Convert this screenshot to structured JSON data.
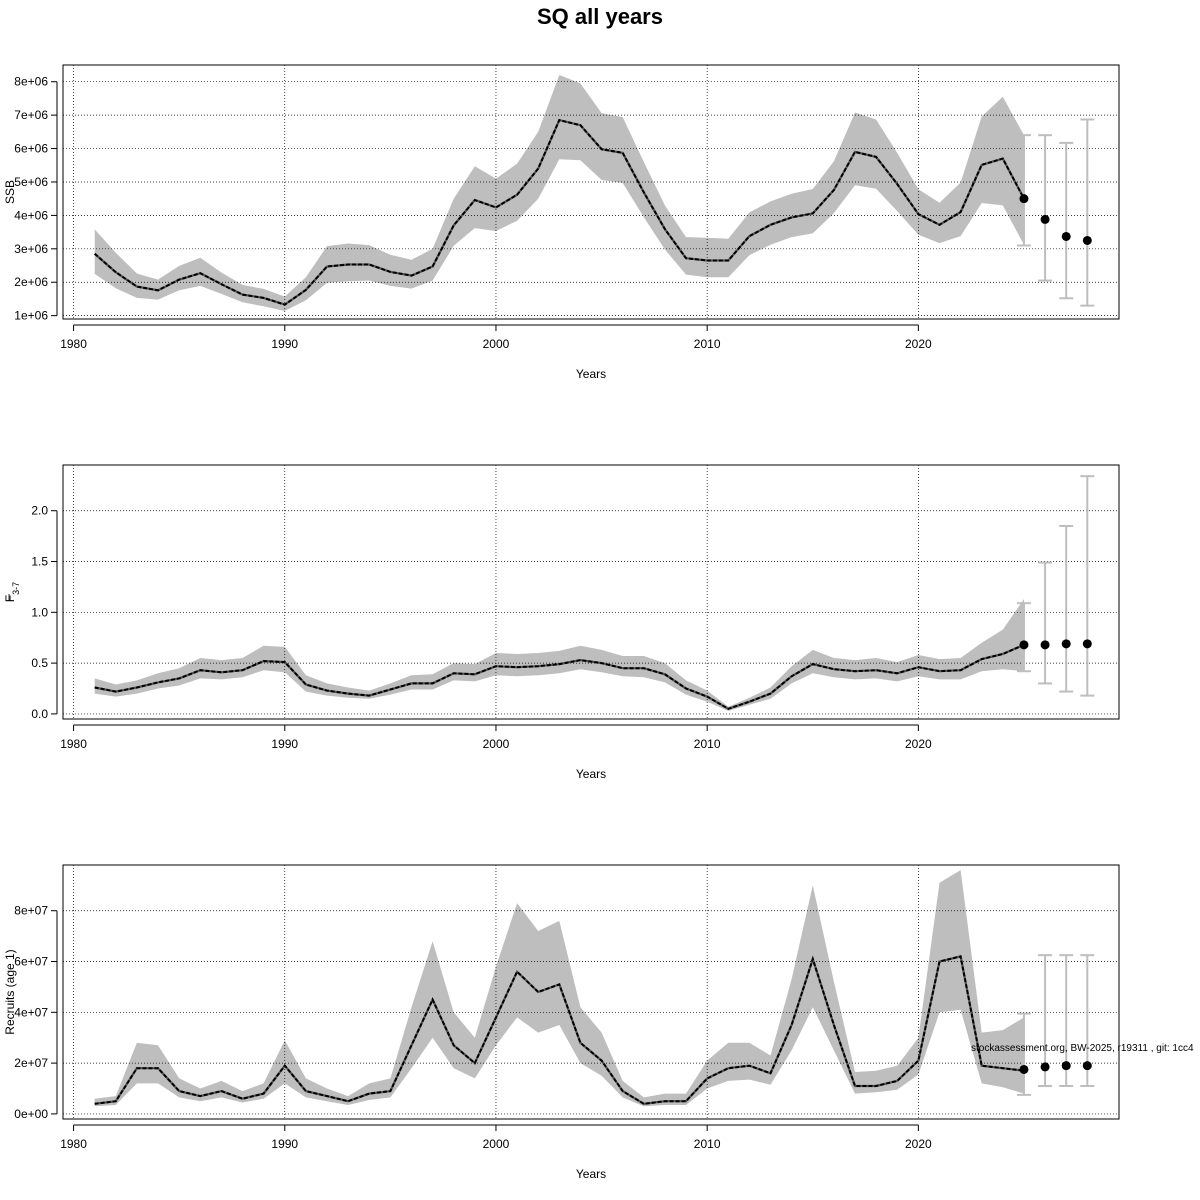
{
  "title": "SQ all years",
  "watermark": "stockassessment.org, BW-2025, r19311 , git: 1cc4",
  "colors": {
    "band": "#bebebe",
    "line": "#000000",
    "grid": "#000000",
    "errorbar": "#bebebe"
  },
  "chart_data": [
    {
      "type": "line",
      "id": "ssb",
      "xlabel": "Years",
      "ylabel": "SSB",
      "ylabel_sub": "",
      "xlim": [
        1979.5,
        2029.5
      ],
      "ylim": [
        900000,
        8500000
      ],
      "xticks": [
        1980,
        1990,
        2000,
        2010,
        2020
      ],
      "xtick_labels": [
        "1980",
        "1990",
        "2000",
        "2010",
        "2020"
      ],
      "yticks": [
        1000000,
        2000000,
        3000000,
        4000000,
        5000000,
        6000000,
        7000000,
        8000000
      ],
      "ytick_labels": [
        "1e+06",
        "2e+06",
        "3e+06",
        "4e+06",
        "5e+06",
        "6e+06",
        "7e+06",
        "8e+06"
      ],
      "grid": true,
      "years": [
        1981,
        1982,
        1983,
        1984,
        1985,
        1986,
        1987,
        1988,
        1989,
        1990,
        1991,
        1992,
        1993,
        1994,
        1995,
        1996,
        1997,
        1998,
        1999,
        2000,
        2001,
        2002,
        2003,
        2004,
        2005,
        2006,
        2007,
        2008,
        2009,
        2010,
        2011,
        2012,
        2013,
        2014,
        2015,
        2016,
        2017,
        2018,
        2019,
        2020,
        2021,
        2022,
        2023,
        2024,
        2025
      ],
      "estimate": [
        2850000,
        2300000,
        1870000,
        1760000,
        2080000,
        2270000,
        1940000,
        1630000,
        1530000,
        1330000,
        1770000,
        2470000,
        2530000,
        2530000,
        2310000,
        2200000,
        2470000,
        3700000,
        4460000,
        4240000,
        4620000,
        5400000,
        6850000,
        6700000,
        5980000,
        5870000,
        4690000,
        3590000,
        2720000,
        2650000,
        2650000,
        3380000,
        3720000,
        3940000,
        4060000,
        4760000,
        5900000,
        5750000,
        4940000,
        4040000,
        3720000,
        4100000,
        5510000,
        5700000,
        4500000
      ],
      "lower": [
        2250000,
        1820000,
        1530000,
        1480000,
        1760000,
        1890000,
        1650000,
        1400000,
        1280000,
        1140000,
        1460000,
        1980000,
        2030000,
        2050000,
        1890000,
        1810000,
        2050000,
        3090000,
        3620000,
        3530000,
        3840000,
        4500000,
        5680000,
        5650000,
        5060000,
        4970000,
        3950000,
        2980000,
        2230000,
        2150000,
        2150000,
        2810000,
        3120000,
        3350000,
        3460000,
        4070000,
        4900000,
        4800000,
        4130000,
        3420000,
        3170000,
        3380000,
        4370000,
        4300000,
        3120000
      ],
      "upper": [
        3580000,
        2880000,
        2260000,
        2080000,
        2490000,
        2730000,
        2290000,
        1920000,
        1800000,
        1570000,
        2150000,
        3080000,
        3160000,
        3110000,
        2820000,
        2670000,
        3000000,
        4500000,
        5470000,
        5100000,
        5550000,
        6500000,
        8200000,
        7950000,
        7060000,
        6940000,
        5600000,
        4300000,
        3350000,
        3330000,
        3300000,
        4090000,
        4420000,
        4650000,
        4790000,
        5620000,
        7080000,
        6870000,
        5870000,
        4780000,
        4380000,
        4980000,
        6960000,
        7550000,
        6400000
      ],
      "forecast": {
        "years": [
          2025,
          2026,
          2027,
          2028
        ],
        "estimate": [
          4500000,
          3880000,
          3370000,
          3250000
        ],
        "lower": [
          3100000,
          2050000,
          1520000,
          1300000
        ],
        "upper": [
          6400000,
          6400000,
          6170000,
          6870000
        ]
      }
    },
    {
      "type": "line",
      "id": "fbar",
      "xlabel": "Years",
      "ylabel": "F",
      "ylabel_sub": "3-7",
      "xlim": [
        1979.5,
        2029.5
      ],
      "ylim": [
        -0.05,
        2.45
      ],
      "xticks": [
        1980,
        1990,
        2000,
        2010,
        2020
      ],
      "xtick_labels": [
        "1980",
        "1990",
        "2000",
        "2010",
        "2020"
      ],
      "yticks": [
        0,
        0.5,
        1,
        1.5,
        2
      ],
      "ytick_labels": [
        "0.0",
        "0.5",
        "1.0",
        "1.5",
        "2.0"
      ],
      "grid": true,
      "years": [
        1981,
        1982,
        1983,
        1984,
        1985,
        1986,
        1987,
        1988,
        1989,
        1990,
        1991,
        1992,
        1993,
        1994,
        1995,
        1996,
        1997,
        1998,
        1999,
        2000,
        2001,
        2002,
        2003,
        2004,
        2005,
        2006,
        2007,
        2008,
        2009,
        2010,
        2011,
        2012,
        2013,
        2014,
        2015,
        2016,
        2017,
        2018,
        2019,
        2020,
        2021,
        2022,
        2023,
        2024,
        2025
      ],
      "estimate": [
        0.26,
        0.22,
        0.26,
        0.31,
        0.35,
        0.43,
        0.41,
        0.43,
        0.52,
        0.51,
        0.29,
        0.23,
        0.2,
        0.18,
        0.24,
        0.3,
        0.3,
        0.4,
        0.39,
        0.47,
        0.46,
        0.47,
        0.49,
        0.53,
        0.5,
        0.45,
        0.45,
        0.39,
        0.25,
        0.17,
        0.05,
        0.12,
        0.2,
        0.37,
        0.49,
        0.44,
        0.42,
        0.43,
        0.4,
        0.46,
        0.42,
        0.43,
        0.54,
        0.59,
        0.68
      ],
      "lower": [
        0.2,
        0.17,
        0.2,
        0.25,
        0.28,
        0.35,
        0.34,
        0.36,
        0.43,
        0.41,
        0.22,
        0.18,
        0.16,
        0.15,
        0.19,
        0.24,
        0.24,
        0.33,
        0.32,
        0.38,
        0.37,
        0.38,
        0.4,
        0.44,
        0.41,
        0.37,
        0.36,
        0.31,
        0.19,
        0.12,
        0.03,
        0.09,
        0.15,
        0.3,
        0.4,
        0.36,
        0.34,
        0.35,
        0.32,
        0.37,
        0.34,
        0.34,
        0.42,
        0.44,
        0.42
      ],
      "upper": [
        0.35,
        0.29,
        0.33,
        0.4,
        0.45,
        0.55,
        0.53,
        0.55,
        0.67,
        0.66,
        0.38,
        0.3,
        0.26,
        0.23,
        0.3,
        0.38,
        0.39,
        0.5,
        0.49,
        0.6,
        0.59,
        0.6,
        0.62,
        0.67,
        0.63,
        0.57,
        0.57,
        0.5,
        0.33,
        0.23,
        0.07,
        0.16,
        0.26,
        0.47,
        0.63,
        0.55,
        0.53,
        0.55,
        0.51,
        0.58,
        0.54,
        0.55,
        0.7,
        0.83,
        1.13
      ],
      "forecast": {
        "years": [
          2025,
          2026,
          2027,
          2028
        ],
        "estimate": [
          0.68,
          0.68,
          0.69,
          0.69
        ],
        "lower": [
          0.42,
          0.3,
          0.22,
          0.18
        ],
        "upper": [
          1.09,
          1.49,
          1.85,
          2.34
        ]
      }
    },
    {
      "type": "line",
      "id": "recruits",
      "xlabel": "Years",
      "ylabel": "Recruits (age 1)",
      "ylabel_sub": "",
      "xlim": [
        1979.5,
        2029.5
      ],
      "ylim": [
        -2000000,
        98000000
      ],
      "xticks": [
        1980,
        1990,
        2000,
        2010,
        2020
      ],
      "xtick_labels": [
        "1980",
        "1990",
        "2000",
        "2010",
        "2020"
      ],
      "yticks": [
        0,
        20000000,
        40000000,
        60000000,
        80000000
      ],
      "ytick_labels": [
        "0e+00",
        "2e+07",
        "4e+07",
        "6e+07",
        "8e+07"
      ],
      "grid": true,
      "years": [
        1981,
        1982,
        1983,
        1984,
        1985,
        1986,
        1987,
        1988,
        1989,
        1990,
        1991,
        1992,
        1993,
        1994,
        1995,
        1996,
        1997,
        1998,
        1999,
        2000,
        2001,
        2002,
        2003,
        2004,
        2005,
        2006,
        2007,
        2008,
        2009,
        2010,
        2011,
        2012,
        2013,
        2014,
        2015,
        2016,
        2017,
        2018,
        2019,
        2020,
        2021,
        2022,
        2023,
        2024,
        2025
      ],
      "estimate": [
        4000000,
        5000000,
        18000000,
        18000000,
        9000000,
        7000000,
        9000000,
        6000000,
        8000000,
        19000000,
        9000000,
        7000000,
        5000000,
        8000000,
        9000000,
        27000000,
        45000000,
        27000000,
        20000000,
        38000000,
        56000000,
        48000000,
        51000000,
        28000000,
        21000000,
        9000000,
        4000000,
        5000000,
        5000000,
        14000000,
        18000000,
        19000000,
        16000000,
        35000000,
        61000000,
        35000000,
        11000000,
        11000000,
        13000000,
        21000000,
        60000000,
        62000000,
        19000000,
        18000000,
        17000000
      ],
      "lower": [
        3000000,
        3500000,
        12000000,
        12000000,
        6500000,
        5000000,
        6500000,
        4500000,
        6000000,
        12000000,
        6500000,
        5000000,
        3500000,
        5500000,
        6500000,
        18000000,
        30000000,
        18000000,
        14000000,
        27000000,
        38000000,
        32000000,
        35000000,
        20000000,
        15000000,
        6500000,
        3000000,
        3500000,
        3500000,
        10000000,
        13000000,
        13500000,
        11500000,
        25000000,
        42000000,
        25000000,
        8000000,
        8500000,
        9500000,
        15500000,
        40000000,
        41000000,
        12000000,
        10500000,
        8000000
      ],
      "upper": [
        6000000,
        7000000,
        28000000,
        27000000,
        14000000,
        10000000,
        13000000,
        9000000,
        12000000,
        29000000,
        14000000,
        10000000,
        7000000,
        12000000,
        14000000,
        42000000,
        68000000,
        40000000,
        30000000,
        58000000,
        83000000,
        72000000,
        76000000,
        42000000,
        32000000,
        13000000,
        6500000,
        8000000,
        8000000,
        21000000,
        28000000,
        28000000,
        23000000,
        53000000,
        90000000,
        52000000,
        16500000,
        17000000,
        19000000,
        30000000,
        91000000,
        96000000,
        32000000,
        33000000,
        38000000
      ],
      "forecast": {
        "years": [
          2025,
          2026,
          2027,
          2028
        ],
        "estimate": [
          17500000,
          18500000,
          19000000,
          19000000
        ],
        "lower": [
          7500000,
          11000000,
          11000000,
          11000000
        ],
        "upper": [
          39500000,
          62500000,
          62500000,
          62500000
        ]
      }
    }
  ]
}
